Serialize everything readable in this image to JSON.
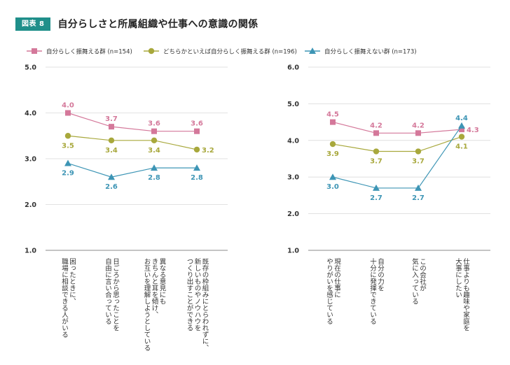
{
  "figure": {
    "badge": "図表 8",
    "title": "自分らしさと所属組織や仕事への意識の関係"
  },
  "legend": [
    {
      "label": "自分らしく振舞える群 (n=154)",
      "color": "#d4789a",
      "marker": "square"
    },
    {
      "label": "どちらかといえば自分らしく振舞える群 (n=196)",
      "color": "#a8a83c",
      "marker": "circle"
    },
    {
      "label": "自分らしく振舞えない群 (n=173)",
      "color": "#3d95b5",
      "marker": "triangle"
    }
  ],
  "chart_data": [
    {
      "type": "line",
      "categories": [
        [
          "困ったときに、",
          "職場に相談できる人がいる"
        ],
        [
          "日ごろから思ったことを",
          "自由に言い合っている"
        ],
        [
          "異なる意見にも",
          "きちんと耳を傾け、",
          "お互いを理解しようとしている"
        ],
        [
          "既存の枠組みにとらわれずに、",
          "新しいものやノウハウを",
          "つくり出すことができる"
        ]
      ],
      "ylim": [
        1.0,
        5.0
      ],
      "yticks": [
        "5.0",
        "4.0",
        "3.0",
        "2.0",
        "1.0"
      ],
      "series": [
        {
          "name": "自分らしく振舞える群 (n=154)",
          "values": [
            4.0,
            3.7,
            3.6,
            3.6
          ],
          "labels": [
            "4.0",
            "3.7",
            "3.6",
            "3.6"
          ]
        },
        {
          "name": "どちらかといえば自分らしく振舞える群 (n=196)",
          "values": [
            3.5,
            3.4,
            3.4,
            3.2
          ],
          "labels": [
            "3.5",
            "3.4",
            "3.4",
            "3.2"
          ]
        },
        {
          "name": "自分らしく振舞えない群 (n=173)",
          "values": [
            2.9,
            2.6,
            2.8,
            2.8
          ],
          "labels": [
            "2.9",
            "2.6",
            "2.8",
            "2.8"
          ]
        }
      ]
    },
    {
      "type": "line",
      "categories": [
        [
          "現在の仕事に",
          "やりがいを感じている"
        ],
        [
          "自分の力を",
          "十分に発揮できている"
        ],
        [
          "この会社が",
          "気に入っている"
        ],
        [
          "仕事よりも趣味や家庭を",
          "大事にしたい"
        ]
      ],
      "ylim": [
        1.0,
        6.0
      ],
      "yticks": [
        "6.0",
        "5.0",
        "4.0",
        "3.0",
        "2.0",
        "1.0"
      ],
      "series": [
        {
          "name": "自分らしく振舞える群 (n=154)",
          "values": [
            4.5,
            4.2,
            4.2,
            4.3
          ],
          "labels": [
            "4.5",
            "4.2",
            "4.2",
            "4.3"
          ]
        },
        {
          "name": "どちらかといえば自分らしく振舞える群 (n=196)",
          "values": [
            3.9,
            3.7,
            3.7,
            4.1
          ],
          "labels": [
            "3.9",
            "3.7",
            "3.7",
            "4.1"
          ]
        },
        {
          "name": "自分らしく振舞えない群 (n=173)",
          "values": [
            3.0,
            2.7,
            2.7,
            4.4
          ],
          "labels": [
            "3.0",
            "2.7",
            "2.7",
            "4.4"
          ]
        }
      ]
    }
  ]
}
